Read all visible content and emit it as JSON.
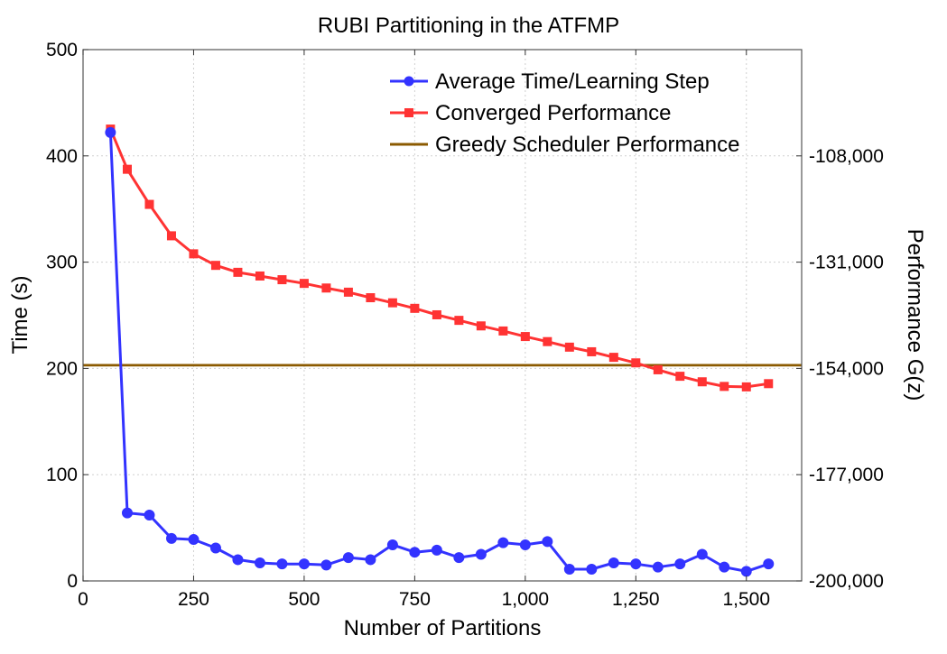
{
  "chart_data": {
    "type": "line",
    "title": "RUBI Partitioning in the ATFMP",
    "xlabel": "Number of Partitions",
    "ylabel": "Time (s)",
    "y2label": "Performance G(z)",
    "xlim": [
      0,
      1625
    ],
    "ylim": [
      0,
      500
    ],
    "y2lim": [
      -200000,
      -85000
    ],
    "x_ticks": [
      0,
      250,
      500,
      750,
      1000,
      1250,
      1500
    ],
    "x_tick_labels": [
      "0",
      "250",
      "500",
      "750",
      "1,000",
      "1,250",
      "1,500"
    ],
    "y_ticks": [
      0,
      100,
      200,
      300,
      400,
      500
    ],
    "y_tick_labels": [
      "0",
      "100",
      "200",
      "300",
      "400",
      "500"
    ],
    "y2_ticks": [
      -200000,
      -177000,
      -154000,
      -131000,
      -108000
    ],
    "y2_tick_labels": [
      "-200,000",
      "-177,000",
      "-154,000",
      "-131,000",
      "-108,000"
    ],
    "grid": true,
    "legend_position": "top-right",
    "series": [
      {
        "name": "Average Time/Learning Step",
        "axis": "left",
        "color": "#3333ff",
        "marker": "circle",
        "x": [
          62,
          100,
          150,
          200,
          250,
          300,
          350,
          400,
          450,
          500,
          550,
          600,
          650,
          700,
          750,
          800,
          850,
          900,
          950,
          1000,
          1050,
          1100,
          1150,
          1200,
          1250,
          1300,
          1350,
          1400,
          1450,
          1500,
          1550
        ],
        "y": [
          422,
          64,
          62,
          40,
          39,
          31,
          20,
          17,
          16,
          16,
          15,
          22,
          20,
          34,
          27,
          29,
          22,
          25,
          36,
          34,
          37,
          11,
          11,
          17,
          16,
          13,
          16,
          25,
          13,
          9,
          16
        ]
      },
      {
        "name": "Converged Performance",
        "axis": "right",
        "color": "#ff3333",
        "marker": "square",
        "x": [
          62,
          100,
          150,
          200,
          250,
          300,
          350,
          400,
          450,
          500,
          550,
          600,
          650,
          700,
          750,
          800,
          850,
          900,
          950,
          1000,
          1050,
          1100,
          1150,
          1200,
          1250,
          1300,
          1350,
          1400,
          1450,
          1500,
          1550
        ],
        "y": [
          -102200,
          -110900,
          -118500,
          -125300,
          -129200,
          -131700,
          -133200,
          -134000,
          -134800,
          -135600,
          -136600,
          -137500,
          -138700,
          -139800,
          -141000,
          -142400,
          -143600,
          -144800,
          -145900,
          -147100,
          -148200,
          -149400,
          -150400,
          -151600,
          -152800,
          -154300,
          -155700,
          -156900,
          -157900,
          -158000,
          -157300
        ]
      },
      {
        "name": "Greedy Scheduler Performance",
        "axis": "left",
        "color": "#8b5a00",
        "marker": "none",
        "x": [
          0,
          1625
        ],
        "y": [
          203,
          203
        ]
      }
    ]
  }
}
